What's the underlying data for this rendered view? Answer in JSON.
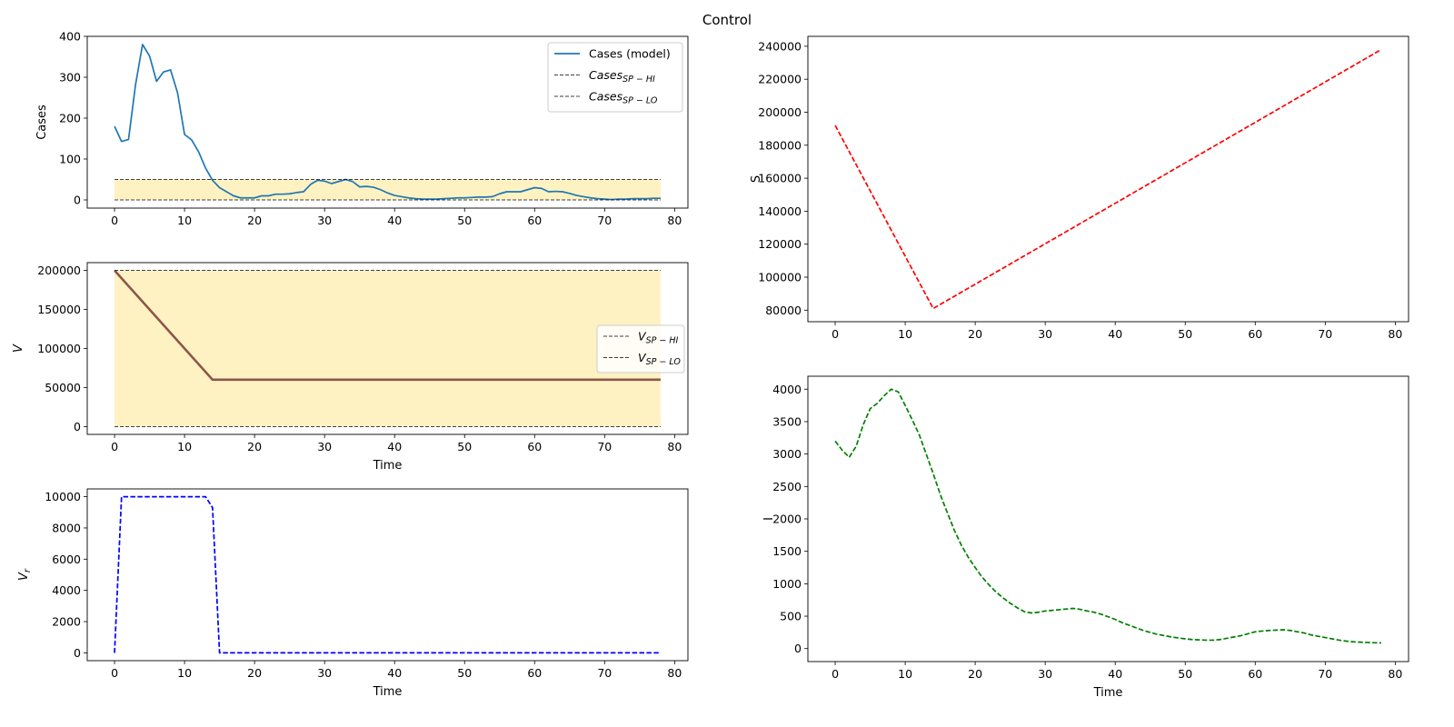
{
  "figure": {
    "suptitle": "Control"
  },
  "chart_data": [
    {
      "id": "cases",
      "type": "line",
      "xlabel": "",
      "ylabel": "Cases",
      "xlim": [
        -3.9,
        81.9
      ],
      "ylim": [
        -20,
        400
      ],
      "xticks": [
        0,
        10,
        20,
        30,
        40,
        50,
        60,
        70,
        80
      ],
      "yticks": [
        0,
        100,
        200,
        300,
        400
      ],
      "grid": false,
      "legend_position": "top-right",
      "band": {
        "x": [
          0,
          78
        ],
        "y": [
          0,
          50
        ],
        "color": "#fff2c2"
      },
      "series": [
        {
          "name": "Cases (model)",
          "color": "#1f77b4",
          "style": "solid",
          "x": [
            0,
            1,
            2,
            3,
            4,
            5,
            6,
            7,
            8,
            9,
            10,
            11,
            12,
            13,
            14,
            15,
            16,
            17,
            18,
            19,
            20,
            21,
            22,
            23,
            24,
            25,
            26,
            27,
            28,
            29,
            30,
            31,
            32,
            33,
            34,
            35,
            36,
            37,
            38,
            39,
            40,
            41,
            42,
            43,
            44,
            45,
            46,
            47,
            48,
            49,
            50,
            51,
            52,
            53,
            54,
            55,
            56,
            57,
            58,
            59,
            60,
            61,
            62,
            63,
            64,
            65,
            66,
            67,
            68,
            69,
            70,
            71,
            72,
            73,
            74,
            75,
            76,
            77,
            78
          ],
          "y": [
            180,
            143,
            148,
            282,
            380,
            352,
            290,
            313,
            318,
            262,
            160,
            147,
            118,
            78,
            48,
            30,
            20,
            10,
            5,
            5,
            5,
            10,
            10,
            14,
            14,
            15,
            18,
            20,
            38,
            48,
            46,
            40,
            45,
            50,
            45,
            32,
            33,
            31,
            25,
            17,
            11,
            8,
            5,
            3,
            2,
            2,
            2,
            3,
            4,
            5,
            5,
            6,
            7,
            7,
            8,
            15,
            20,
            20,
            20,
            25,
            30,
            28,
            20,
            21,
            20,
            16,
            11,
            8,
            5,
            3,
            2,
            1,
            2,
            2,
            3,
            3,
            3,
            4,
            4
          ]
        },
        {
          "name": "Cases_{SP-HI}",
          "label_main": "Cases",
          "label_sub": "SP − HI",
          "color": "#000000",
          "style": "dash-thin",
          "x": [
            0,
            78
          ],
          "y": [
            50,
            50
          ]
        },
        {
          "name": "Cases_{SP-LO}",
          "label_main": "Cases",
          "label_sub": "SP − LO",
          "color": "#000000",
          "style": "dash-thin",
          "x": [
            0,
            78
          ],
          "y": [
            0,
            0
          ]
        }
      ]
    },
    {
      "id": "v",
      "type": "line",
      "xlabel": "Time",
      "ylabel": "V",
      "xlim": [
        -3.9,
        81.9
      ],
      "ylim": [
        -10000,
        210000
      ],
      "xticks": [
        0,
        10,
        20,
        30,
        40,
        50,
        60,
        70,
        80
      ],
      "yticks": [
        0,
        50000,
        100000,
        150000,
        200000
      ],
      "grid": false,
      "legend_position": "center-right",
      "band": {
        "x": [
          0,
          78
        ],
        "y": [
          0,
          200000
        ],
        "color": "#fff2c2"
      },
      "series": [
        {
          "name": "V",
          "color": "#8c564b",
          "style": "solid-thick",
          "x": [
            0,
            14,
            78
          ],
          "y": [
            200000,
            60000,
            60000
          ]
        },
        {
          "name": "V_{SP-HI}",
          "label_main": "V",
          "label_sub": "SP − HI",
          "color": "#000000",
          "style": "dash-thin",
          "x": [
            0,
            78
          ],
          "y": [
            200000,
            200000
          ]
        },
        {
          "name": "V_{SP-LO}",
          "label_main": "V",
          "label_sub": "SP − LO",
          "color": "#000000",
          "style": "dash-thin",
          "x": [
            0,
            78
          ],
          "y": [
            0,
            0
          ]
        }
      ]
    },
    {
      "id": "vr",
      "type": "line",
      "xlabel": "Time",
      "ylabel": "V_r",
      "ylabel_main": "V",
      "ylabel_sub": "r",
      "xlim": [
        -3.9,
        81.9
      ],
      "ylim": [
        -500,
        10500
      ],
      "xticks": [
        0,
        10,
        20,
        30,
        40,
        50,
        60,
        70,
        80
      ],
      "yticks": [
        0,
        2000,
        4000,
        6000,
        8000,
        10000
      ],
      "grid": false,
      "series": [
        {
          "name": "V_r",
          "color": "#0000ff",
          "style": "dashed",
          "x": [
            0,
            1,
            13,
            14,
            15,
            78
          ],
          "y": [
            0,
            10000,
            10000,
            9300,
            0,
            0
          ]
        }
      ]
    },
    {
      "id": "s",
      "type": "line",
      "xlabel": "",
      "ylabel": "S",
      "xlim": [
        -3.9,
        81.9
      ],
      "ylim": [
        73000,
        246000
      ],
      "xticks": [
        0,
        10,
        20,
        30,
        40,
        50,
        60,
        70,
        80
      ],
      "yticks": [
        80000,
        100000,
        120000,
        140000,
        160000,
        180000,
        200000,
        220000,
        240000
      ],
      "grid": false,
      "series": [
        {
          "name": "S",
          "color": "#ff0000",
          "style": "dashed",
          "x": [
            0,
            14,
            78
          ],
          "y": [
            192000,
            81000,
            238000
          ]
        }
      ]
    },
    {
      "id": "i",
      "type": "line",
      "xlabel": "Time",
      "ylabel": "I",
      "xlim": [
        -3.9,
        81.9
      ],
      "ylim": [
        -200,
        4200
      ],
      "xticks": [
        0,
        10,
        20,
        30,
        40,
        50,
        60,
        70,
        80
      ],
      "yticks": [
        0,
        500,
        1000,
        1500,
        2000,
        2500,
        3000,
        3500,
        4000
      ],
      "grid": false,
      "series": [
        {
          "name": "I",
          "color": "#008000",
          "style": "dashed",
          "x": [
            0,
            1,
            2,
            3,
            4,
            5,
            6,
            7,
            8,
            9,
            10,
            11,
            12,
            13,
            14,
            15,
            16,
            17,
            18,
            19,
            20,
            21,
            22,
            23,
            24,
            25,
            26,
            27,
            28,
            29,
            30,
            31,
            32,
            33,
            34,
            35,
            36,
            37,
            38,
            39,
            40,
            41,
            42,
            43,
            44,
            45,
            46,
            47,
            48,
            49,
            50,
            51,
            52,
            53,
            54,
            55,
            56,
            57,
            58,
            59,
            60,
            61,
            62,
            63,
            64,
            65,
            66,
            67,
            68,
            69,
            70,
            71,
            72,
            73,
            74,
            75,
            76,
            77,
            78
          ],
          "y": [
            3200,
            3060,
            2950,
            3120,
            3450,
            3700,
            3780,
            3900,
            4000,
            3960,
            3750,
            3530,
            3300,
            3000,
            2700,
            2380,
            2100,
            1830,
            1600,
            1410,
            1250,
            1100,
            980,
            870,
            780,
            700,
            630,
            570,
            550,
            560,
            580,
            590,
            600,
            610,
            620,
            605,
            580,
            560,
            530,
            490,
            450,
            400,
            360,
            320,
            280,
            250,
            220,
            200,
            180,
            165,
            150,
            140,
            135,
            130,
            130,
            140,
            160,
            180,
            200,
            230,
            260,
            270,
            280,
            285,
            290,
            280,
            260,
            240,
            210,
            190,
            170,
            150,
            130,
            115,
            105,
            100,
            95,
            90,
            88
          ]
        }
      ]
    }
  ]
}
